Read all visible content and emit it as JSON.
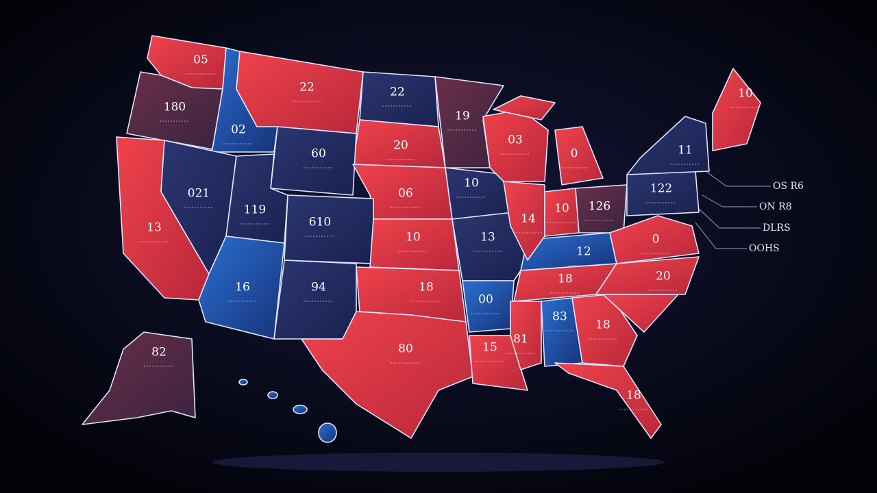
{
  "map": {
    "state_labels": [
      "05",
      "22",
      "22",
      "180",
      "02",
      "60",
      "20",
      "19",
      "03",
      "0",
      "11",
      "10",
      "021",
      "13",
      "119",
      "610",
      "06",
      "10",
      "10",
      "13",
      "14",
      "10",
      "126",
      "122",
      "12",
      "0",
      "16",
      "94",
      "18",
      "00",
      "18",
      "20",
      "80",
      "15",
      "81",
      "83",
      "18",
      "18",
      "82"
    ],
    "callouts": [
      "OS R6",
      "ON R8",
      "DLRS",
      "OOHS"
    ]
  }
}
